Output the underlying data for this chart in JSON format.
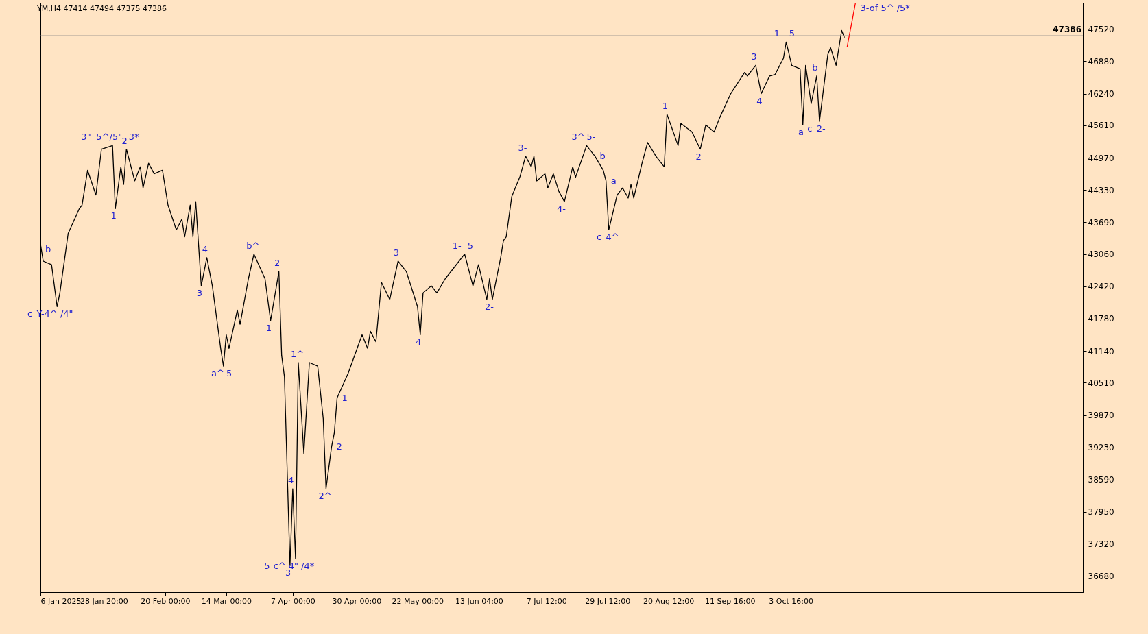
{
  "chart_data": {
    "type": "line",
    "title": "YM,H4  47414 47494 47375 47386",
    "xlim": [
      "2025-01-06",
      "2026-01-17"
    ],
    "ylim": [
      36360,
      48040
    ],
    "xticks": [
      {
        "value": "2025-01-06",
        "label": "6 Jan 2025"
      },
      {
        "value": "2025-01-28T20:00",
        "label": "28 Jan 20:00"
      },
      {
        "value": "2025-02-20",
        "label": "20 Feb 00:00"
      },
      {
        "value": "2025-03-14",
        "label": "14 Mar 00:00"
      },
      {
        "value": "2025-04-07",
        "label": "7 Apr 00:00"
      },
      {
        "value": "2025-04-30",
        "label": "30 Apr 00:00"
      },
      {
        "value": "2025-05-22",
        "label": "22 May 00:00"
      },
      {
        "value": "2025-06-13T04:00",
        "label": "13 Jun 04:00"
      },
      {
        "value": "2025-07-07T12:00",
        "label": "7 Jul 12:00"
      },
      {
        "value": "2025-07-29T12:00",
        "label": "29 Jul 12:00"
      },
      {
        "value": "2025-08-20T12:00",
        "label": "20 Aug 12:00"
      },
      {
        "value": "2025-09-11T16:00",
        "label": "11 Sep 16:00"
      },
      {
        "value": "2025-10-03T16:00",
        "label": "3 Oct 16:00"
      }
    ],
    "yticks": [
      36680,
      37320,
      37950,
      38590,
      39230,
      39870,
      40510,
      41140,
      41780,
      42420,
      43060,
      43690,
      44330,
      44970,
      45610,
      46240,
      46880,
      47520
    ],
    "series": [
      {
        "color": "#000000",
        "x": [
          "2025-01-06",
          "2025-01-07",
          "2025-01-10",
          "2025-01-12",
          "2025-01-13",
          "2025-01-16",
          "2025-01-20",
          "2025-01-21",
          "2025-01-23",
          "2025-01-26",
          "2025-01-28",
          "2025-02-01",
          "2025-02-02",
          "2025-02-04",
          "2025-02-05",
          "2025-02-06",
          "2025-02-09",
          "2025-02-11",
          "2025-02-12",
          "2025-02-14",
          "2025-02-16",
          "2025-02-19",
          "2025-02-21",
          "2025-02-24",
          "2025-02-26",
          "2025-02-27",
          "2025-03-01",
          "2025-03-02",
          "2025-03-03",
          "2025-03-05",
          "2025-03-07",
          "2025-03-09",
          "2025-03-12",
          "2025-03-13",
          "2025-03-14",
          "2025-03-15",
          "2025-03-18",
          "2025-03-19",
          "2025-03-22",
          "2025-03-24",
          "2025-03-28",
          "2025-03-30",
          "2025-04-02",
          "2025-04-03",
          "2025-04-04",
          "2025-04-06",
          "2025-04-07",
          "2025-04-08",
          "2025-04-09",
          "2025-04-11",
          "2025-04-13",
          "2025-04-16",
          "2025-04-18",
          "2025-04-19",
          "2025-04-21",
          "2025-04-22",
          "2025-04-23",
          "2025-04-27",
          "2025-05-02",
          "2025-05-04",
          "2025-05-05",
          "2025-05-07",
          "2025-05-09",
          "2025-05-12",
          "2025-05-15",
          "2025-05-18",
          "2025-05-22",
          "2025-05-23",
          "2025-05-24",
          "2025-05-27",
          "2025-05-29",
          "2025-06-01",
          "2025-06-06",
          "2025-06-08",
          "2025-06-11",
          "2025-06-13",
          "2025-06-16",
          "2025-06-17",
          "2025-06-18",
          "2025-06-21",
          "2025-06-22",
          "2025-06-23",
          "2025-06-25",
          "2025-06-28",
          "2025-06-30",
          "2025-07-02",
          "2025-07-03",
          "2025-07-04",
          "2025-07-07",
          "2025-07-08",
          "2025-07-10",
          "2025-07-12",
          "2025-07-14",
          "2025-07-17",
          "2025-07-18",
          "2025-07-22",
          "2025-07-25",
          "2025-07-28",
          "2025-07-29",
          "2025-07-30",
          "2025-08-02",
          "2025-08-04",
          "2025-08-06",
          "2025-08-07",
          "2025-08-08",
          "2025-08-11",
          "2025-08-13",
          "2025-08-16",
          "2025-08-19",
          "2025-08-20",
          "2025-08-24",
          "2025-08-25",
          "2025-08-29",
          "2025-09-01",
          "2025-09-03",
          "2025-09-06",
          "2025-09-08",
          "2025-09-12",
          "2025-09-17",
          "2025-09-18",
          "2025-09-21",
          "2025-09-23",
          "2025-09-26",
          "2025-09-28",
          "2025-10-01",
          "2025-10-02",
          "2025-10-04",
          "2025-10-07",
          "2025-10-08",
          "2025-10-09",
          "2025-10-11",
          "2025-10-13",
          "2025-10-14",
          "2025-10-17",
          "2025-10-18",
          "2025-10-20",
          "2025-10-22",
          "2025-10-23"
        ],
        "values": [
          43260,
          42920,
          42850,
          42020,
          42290,
          43470,
          43960,
          44030,
          44720,
          44230,
          45140,
          45210,
          43960,
          44790,
          44440,
          45140,
          44510,
          44790,
          44370,
          44860,
          44650,
          44720,
          44030,
          43540,
          43750,
          43400,
          44030,
          43400,
          44100,
          42430,
          42990,
          42430,
          41190,
          40840,
          41460,
          41190,
          41950,
          41670,
          42570,
          43060,
          42570,
          41740,
          42710,
          41050,
          40630,
          36890,
          38410,
          37030,
          40910,
          39110,
          40910,
          40840,
          39800,
          38410,
          39240,
          39520,
          40210,
          40700,
          41460,
          41190,
          41530,
          41320,
          42500,
          42160,
          42920,
          42710,
          42020,
          41460,
          42290,
          42430,
          42290,
          42570,
          42920,
          43060,
          42430,
          42850,
          42160,
          42570,
          42160,
          42990,
          43330,
          43400,
          44200,
          44600,
          45000,
          44790,
          45000,
          44510,
          44650,
          44370,
          44650,
          44300,
          44100,
          44790,
          44580,
          45210,
          45000,
          44720,
          44510,
          43540,
          44230,
          44370,
          44170,
          44440,
          44170,
          44860,
          45270,
          45000,
          44790,
          45830,
          45210,
          45650,
          45480,
          45140,
          45620,
          45480,
          45760,
          46240,
          46660,
          46590,
          46800,
          46240,
          46590,
          46620,
          46940,
          47260,
          46800,
          46730,
          45620,
          46800,
          46040,
          46590,
          45690,
          47010,
          47150,
          46800,
          47490,
          47350
        ]
      },
      {
        "type": "line",
        "color": "#ff0000",
        "x": [
          "2025-10-24",
          "2025-10-27"
        ],
        "values": [
          47170,
          48040
        ]
      }
    ],
    "ref_lines": [
      {
        "axis": "y",
        "value": 47386,
        "label": "47386",
        "color": "#808080"
      }
    ],
    "annotations": [
      {
        "text": "3\"",
        "x": "2025-02-01",
        "y": 45210
      },
      {
        "text": "5^/5\"",
        "x": "2025-02-01",
        "y": 45210
      },
      {
        "text": "3*",
        "x": "2025-02-01",
        "y": 45210
      },
      {
        "text": "2",
        "x": "2025-02-06",
        "y": 45140
      },
      {
        "text": "1",
        "x": "2025-02-02",
        "y": 43960
      },
      {
        "text": "b",
        "x": "2025-01-06",
        "y": 43260
      },
      {
        "text": "c",
        "x": "2025-01-12",
        "y": 42020
      },
      {
        "text": "Y-4^ /4\"",
        "x": "2025-01-12",
        "y": 42020
      },
      {
        "text": "4",
        "x": "2025-03-07",
        "y": 42990
      },
      {
        "text": "3",
        "x": "2025-03-05",
        "y": 42430
      },
      {
        "text": "a^",
        "x": "2025-03-13",
        "y": 40840
      },
      {
        "text": "5",
        "x": "2025-03-13",
        "y": 40840
      },
      {
        "text": "b^",
        "x": "2025-03-24",
        "y": 43060
      },
      {
        "text": "2",
        "x": "2025-04-02",
        "y": 42710
      },
      {
        "text": "1",
        "x": "2025-03-30",
        "y": 41740
      },
      {
        "text": "1^",
        "x": "2025-04-09",
        "y": 40910
      },
      {
        "text": "4",
        "x": "2025-04-07",
        "y": 38410
      },
      {
        "text": "3",
        "x": "2025-04-06",
        "y": 36890
      },
      {
        "text": "5",
        "x": "2025-04-08",
        "y": 37030
      },
      {
        "text": "c^",
        "x": "2025-04-08",
        "y": 37030
      },
      {
        "text": "4\" /4*",
        "x": "2025-04-08",
        "y": 37030
      },
      {
        "text": "1",
        "x": "2025-04-23",
        "y": 40210
      },
      {
        "text": "2",
        "x": "2025-04-21",
        "y": 39240
      },
      {
        "text": "2^",
        "x": "2025-04-19",
        "y": 38410
      },
      {
        "text": "3",
        "x": "2025-05-15",
        "y": 42920
      },
      {
        "text": "4",
        "x": "2025-05-23",
        "y": 41460
      },
      {
        "text": "1-",
        "x": "2025-06-08",
        "y": 43060
      },
      {
        "text": "5",
        "x": "2025-06-08",
        "y": 43060
      },
      {
        "text": "2-",
        "x": "2025-06-18",
        "y": 42160
      },
      {
        "text": "3-",
        "x": "2025-06-30",
        "y": 45000
      },
      {
        "text": "4-",
        "x": "2025-07-14",
        "y": 44100
      },
      {
        "text": "3^",
        "x": "2025-07-22",
        "y": 45210
      },
      {
        "text": "5-",
        "x": "2025-07-22",
        "y": 45210
      },
      {
        "text": "a",
        "x": "2025-07-29",
        "y": 44510
      },
      {
        "text": "b",
        "x": "2025-07-25",
        "y": 45000
      },
      {
        "text": "c",
        "x": "2025-07-30",
        "y": 43540
      },
      {
        "text": "4^",
        "x": "2025-07-30",
        "y": 43540
      },
      {
        "text": "1",
        "x": "2025-08-20",
        "y": 45830
      },
      {
        "text": "2",
        "x": "2025-09-01",
        "y": 45140
      },
      {
        "text": "3",
        "x": "2025-09-21",
        "y": 46800
      },
      {
        "text": "4",
        "x": "2025-09-23",
        "y": 46240
      },
      {
        "text": "1-",
        "x": "2025-10-02",
        "y": 47260
      },
      {
        "text": "5",
        "x": "2025-10-02",
        "y": 47260
      },
      {
        "text": "a",
        "x": "2025-10-08",
        "y": 45620
      },
      {
        "text": "b",
        "x": "2025-10-13",
        "y": 46590
      },
      {
        "text": "c",
        "x": "2025-10-14",
        "y": 45690
      },
      {
        "text": "2-",
        "x": "2025-10-14",
        "y": 45690
      },
      {
        "text": "3-of 5^ /5*",
        "x": "2025-10-27",
        "y": 48040
      }
    ]
  }
}
